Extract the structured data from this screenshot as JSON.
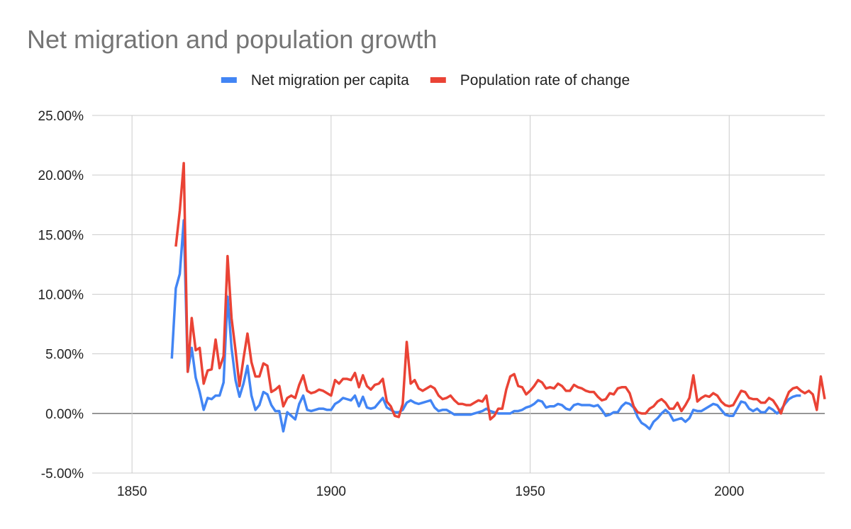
{
  "chart_data": {
    "type": "line",
    "title": "Net migration and population growth",
    "x": [
      1860,
      1861,
      1862,
      1863,
      1864,
      1865,
      1866,
      1867,
      1868,
      1869,
      1870,
      1871,
      1872,
      1873,
      1874,
      1875,
      1876,
      1877,
      1878,
      1879,
      1880,
      1881,
      1882,
      1883,
      1884,
      1885,
      1886,
      1887,
      1888,
      1889,
      1890,
      1891,
      1892,
      1893,
      1894,
      1895,
      1896,
      1897,
      1898,
      1899,
      1900,
      1901,
      1902,
      1903,
      1904,
      1905,
      1906,
      1907,
      1908,
      1909,
      1910,
      1911,
      1912,
      1913,
      1914,
      1915,
      1916,
      1917,
      1918,
      1919,
      1920,
      1921,
      1922,
      1923,
      1924,
      1925,
      1926,
      1927,
      1928,
      1929,
      1930,
      1931,
      1932,
      1933,
      1934,
      1935,
      1936,
      1937,
      1938,
      1939,
      1940,
      1941,
      1942,
      1943,
      1944,
      1945,
      1946,
      1947,
      1948,
      1949,
      1950,
      1951,
      1952,
      1953,
      1954,
      1955,
      1956,
      1957,
      1958,
      1959,
      1960,
      1961,
      1962,
      1963,
      1964,
      1965,
      1966,
      1967,
      1968,
      1969,
      1970,
      1971,
      1972,
      1973,
      1974,
      1975,
      1976,
      1977,
      1978,
      1979,
      1980,
      1981,
      1982,
      1983,
      1984,
      1985,
      1986,
      1987,
      1988,
      1989,
      1990,
      1991,
      1992,
      1993,
      1994,
      1995,
      1996,
      1997,
      1998,
      1999,
      2000,
      2001,
      2002,
      2003,
      2004,
      2005,
      2006,
      2007,
      2008,
      2009,
      2010,
      2011,
      2012,
      2013,
      2014,
      2015,
      2016,
      2017,
      2018,
      2019,
      2020,
      2021,
      2022,
      2023,
      2024
    ],
    "series": [
      {
        "name": "Net migration per capita",
        "color": "#4285f4",
        "values": [
          4.6,
          10.5,
          11.7,
          16.2,
          3.5,
          5.5,
          3.0,
          1.8,
          0.3,
          1.3,
          1.2,
          1.5,
          1.5,
          2.6,
          9.8,
          5.5,
          2.8,
          1.4,
          2.5,
          4.0,
          1.5,
          0.3,
          0.7,
          1.8,
          1.6,
          0.7,
          0.2,
          0.2,
          -1.5,
          0.1,
          -0.2,
          -0.5,
          0.8,
          1.5,
          0.3,
          0.2,
          0.3,
          0.4,
          0.4,
          0.3,
          0.3,
          0.8,
          1.0,
          1.3,
          1.2,
          1.1,
          1.5,
          0.6,
          1.4,
          0.5,
          0.4,
          0.5,
          0.9,
          1.3,
          0.5,
          0.3,
          0.1,
          0.1,
          0.3,
          0.9,
          1.1,
          0.9,
          0.8,
          0.9,
          1.0,
          1.1,
          0.5,
          0.2,
          0.3,
          0.3,
          0.1,
          -0.1,
          -0.1,
          -0.1,
          -0.1,
          -0.1,
          0.0,
          0.1,
          0.2,
          0.4,
          0.2,
          0.1,
          0.0,
          0.0,
          0.0,
          0.0,
          0.2,
          0.2,
          0.3,
          0.5,
          0.6,
          0.8,
          1.1,
          1.0,
          0.5,
          0.6,
          0.6,
          0.8,
          0.7,
          0.4,
          0.3,
          0.7,
          0.8,
          0.7,
          0.7,
          0.7,
          0.6,
          0.7,
          0.3,
          -0.2,
          -0.1,
          0.1,
          0.1,
          0.6,
          0.9,
          0.8,
          0.5,
          -0.3,
          -0.8,
          -1.0,
          -1.3,
          -0.7,
          -0.4,
          0.0,
          0.3,
          0.0,
          -0.6,
          -0.5,
          -0.4,
          -0.7,
          -0.4,
          0.3,
          0.2,
          0.2,
          0.4,
          0.6,
          0.8,
          0.7,
          0.3,
          -0.1,
          -0.2,
          -0.2,
          0.4,
          1.0,
          0.9,
          0.4,
          0.2,
          0.4,
          0.1,
          0.1,
          0.5,
          0.3,
          0.0,
          0.3,
          0.8,
          1.2,
          1.4,
          1.5,
          1.5,
          null,
          null,
          null,
          null,
          null,
          null
        ]
      },
      {
        "name": "Population rate of change",
        "color": "#ea4335",
        "values": [
          null,
          14.0,
          17.0,
          21.0,
          3.5,
          8.0,
          5.3,
          5.5,
          2.5,
          3.6,
          3.7,
          6.2,
          3.8,
          4.8,
          13.2,
          8.0,
          5.3,
          2.3,
          4.6,
          6.7,
          4.3,
          3.1,
          3.1,
          4.2,
          4.0,
          1.8,
          2.0,
          2.3,
          0.6,
          1.3,
          1.5,
          1.3,
          2.4,
          3.2,
          1.9,
          1.7,
          1.8,
          2.0,
          1.9,
          1.7,
          1.5,
          2.8,
          2.5,
          2.9,
          2.9,
          2.8,
          3.4,
          2.2,
          3.2,
          2.3,
          2.0,
          2.4,
          2.5,
          2.9,
          1.0,
          0.6,
          -0.2,
          -0.3,
          0.8,
          6.0,
          2.5,
          2.8,
          2.1,
          1.9,
          2.1,
          2.3,
          2.1,
          1.5,
          1.2,
          1.3,
          1.5,
          1.1,
          0.8,
          0.8,
          0.7,
          0.7,
          0.9,
          1.1,
          1.0,
          1.5,
          -0.5,
          -0.2,
          0.4,
          0.4,
          2.0,
          3.1,
          3.3,
          2.3,
          2.2,
          1.6,
          1.9,
          2.3,
          2.8,
          2.6,
          2.1,
          2.2,
          2.1,
          2.5,
          2.3,
          1.9,
          1.9,
          2.4,
          2.2,
          2.1,
          1.9,
          1.8,
          1.8,
          1.4,
          1.1,
          1.2,
          1.7,
          1.6,
          2.1,
          2.2,
          2.2,
          1.7,
          0.6,
          0.1,
          0.0,
          0.0,
          0.4,
          0.6,
          1.0,
          1.2,
          0.9,
          0.4,
          0.4,
          0.9,
          0.2,
          0.7,
          1.3,
          3.2,
          1.0,
          1.3,
          1.5,
          1.4,
          1.7,
          1.5,
          1.0,
          0.7,
          0.6,
          0.7,
          1.3,
          1.9,
          1.8,
          1.3,
          1.2,
          1.2,
          0.9,
          0.9,
          1.3,
          1.1,
          0.6,
          0.0,
          1.0,
          1.8,
          2.1,
          2.2,
          1.9,
          1.7,
          1.9,
          1.6,
          0.3,
          3.1,
          1.2
        ]
      }
    ],
    "xlim": [
      1840,
      2024
    ],
    "xticks": [
      1850,
      1900,
      1950,
      2000
    ],
    "ylim": [
      -5,
      25
    ],
    "yticks": [
      {
        "value": -5,
        "label": "-5.00%"
      },
      {
        "value": 0,
        "label": "0.00%"
      },
      {
        "value": 5,
        "label": "5.00%"
      },
      {
        "value": 10,
        "label": "10.00%"
      },
      {
        "value": 15,
        "label": "15.00%"
      },
      {
        "value": 20,
        "label": "20.00%"
      },
      {
        "value": 25,
        "label": "25.00%"
      }
    ],
    "grid": true,
    "legend": "top"
  }
}
